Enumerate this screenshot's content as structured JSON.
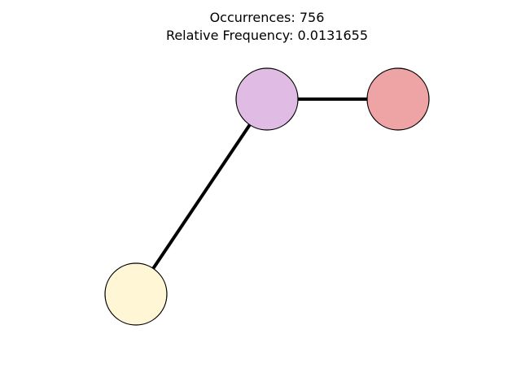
{
  "title": {
    "occurrences_line": "Occurrences: 756",
    "frequency_line": "Relative Frequency: 0.0131655"
  },
  "graph": {
    "nodes": [
      {
        "id": "node-a",
        "color": "#e0bbe4"
      },
      {
        "id": "node-b",
        "color": "#eea3a5"
      },
      {
        "id": "node-c",
        "color": "#fff6d5"
      }
    ],
    "edges": [
      {
        "from": "node-a",
        "to": "node-b"
      },
      {
        "from": "node-a",
        "to": "node-c"
      }
    ],
    "node_border_color": "#000000",
    "edge_color": "#000000"
  }
}
